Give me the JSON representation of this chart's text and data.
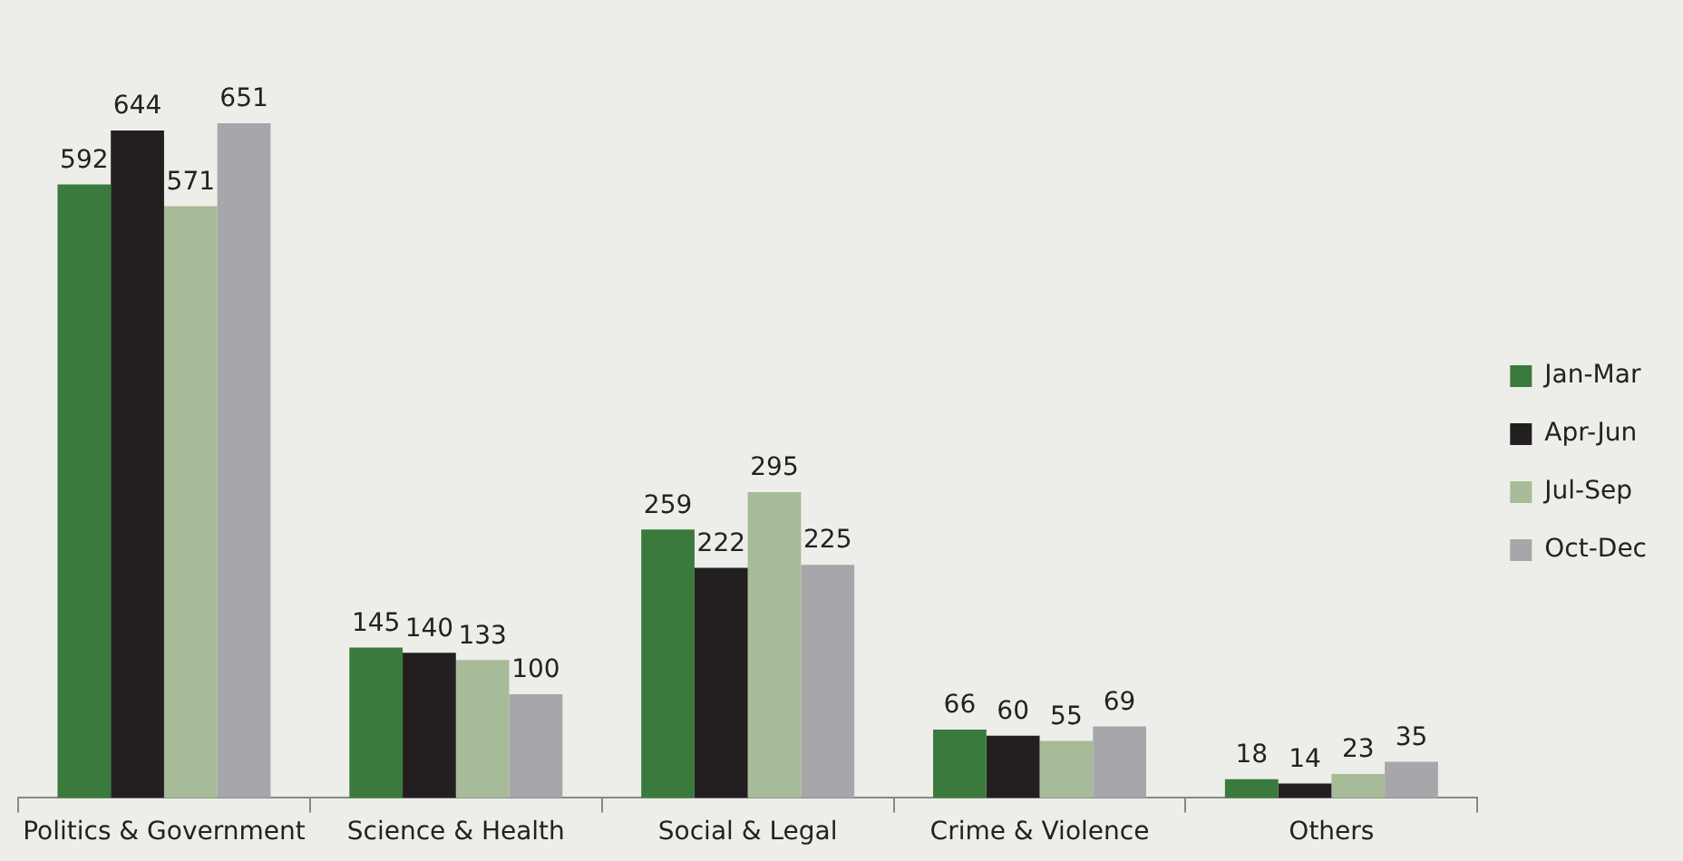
{
  "chart_data": {
    "type": "bar",
    "categories": [
      "Politics & Government",
      "Science & Health",
      "Social & Legal",
      "Crime & Violence",
      "Others"
    ],
    "series": [
      {
        "name": "Jan-Mar",
        "color": "#3a7a3c",
        "values": [
          592,
          145,
          259,
          66,
          18
        ]
      },
      {
        "name": "Apr-Jun",
        "color": "#231f20",
        "values": [
          644,
          140,
          222,
          60,
          14
        ]
      },
      {
        "name": "Jul-Sep",
        "color": "#a8bb98",
        "values": [
          571,
          133,
          295,
          55,
          23
        ]
      },
      {
        "name": "Oct-Dec",
        "color": "#a7a7ab",
        "values": [
          651,
          100,
          225,
          69,
          35
        ]
      }
    ],
    "data_labels": true,
    "legend": "right",
    "grid": false
  }
}
